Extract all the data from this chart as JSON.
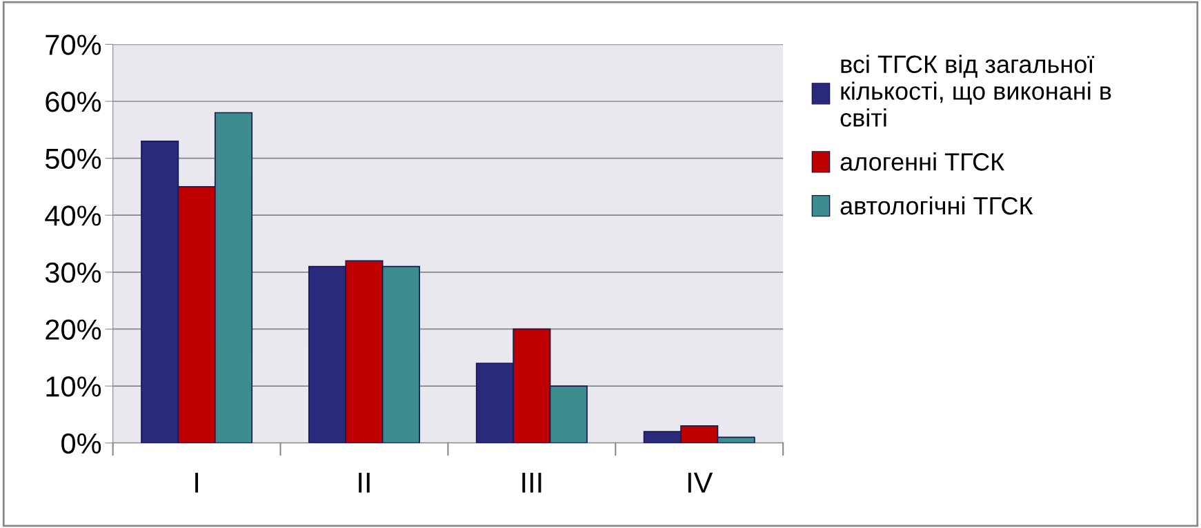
{
  "chart_data": {
    "type": "bar",
    "categories": [
      "I",
      "II",
      "III",
      "IV"
    ],
    "series": [
      {
        "name": "всі ТГСК від загальної кількості, що виконані в світі",
        "color": "#2a2a7c",
        "values": [
          53,
          31,
          14,
          2
        ]
      },
      {
        "name": "алогенні ТГСК",
        "color": "#c00000",
        "values": [
          45,
          32,
          20,
          3
        ]
      },
      {
        "name": "автологічні ТГСК",
        "color": "#3d8c90",
        "values": [
          58,
          31,
          10,
          1
        ]
      }
    ],
    "ylim": [
      0,
      70
    ],
    "yticks": [
      {
        "value": 0,
        "label": "0%"
      },
      {
        "value": 10,
        "label": "10%"
      },
      {
        "value": 20,
        "label": "20%"
      },
      {
        "value": 30,
        "label": "30%"
      },
      {
        "value": 40,
        "label": "40%"
      },
      {
        "value": 50,
        "label": "50%"
      },
      {
        "value": 60,
        "label": "60%"
      },
      {
        "value": 70,
        "label": "70%"
      }
    ],
    "grid": "y",
    "legend": "right"
  }
}
